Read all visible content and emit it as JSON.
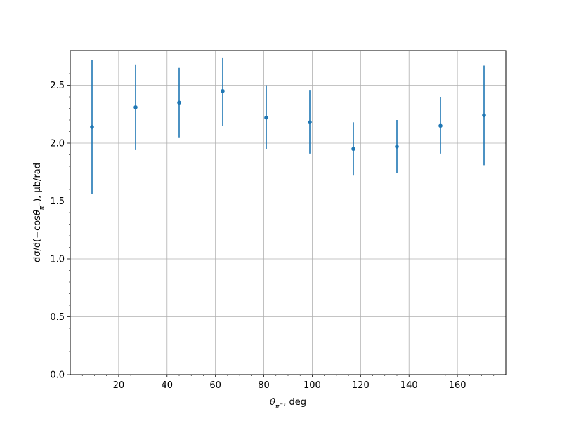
{
  "chart_data": {
    "type": "scatter",
    "title": "",
    "xlabel": {
      "symbol": "θ",
      "subscript": "π",
      "sub_sup": "−",
      "unit": ", deg"
    },
    "ylabel": {
      "prefix": "dσ/d(−cos",
      "symbol": "θ",
      "subscript": "π",
      "sub_sup": "−",
      "suffix": "), μb/rad"
    },
    "xlim": [
      0,
      180
    ],
    "ylim": [
      0.0,
      2.8
    ],
    "x_ticks": [
      20,
      40,
      60,
      80,
      100,
      120,
      140,
      160
    ],
    "x_tick_labels": [
      "20",
      "40",
      "60",
      "80",
      "100",
      "120",
      "140",
      "160"
    ],
    "x_minor_step": 5,
    "y_ticks": [
      0.0,
      0.5,
      1.0,
      1.5,
      2.0,
      2.5
    ],
    "y_tick_labels": [
      "0.0",
      "0.5",
      "1.0",
      "1.5",
      "2.0",
      "2.5"
    ],
    "y_minor_step": 0.1,
    "grid": true,
    "color": "#1f77b4",
    "series": [
      {
        "x": [
          9,
          27,
          45,
          63,
          81,
          99,
          117,
          135,
          153,
          171
        ],
        "y": [
          2.14,
          2.31,
          2.35,
          2.45,
          2.22,
          2.18,
          1.95,
          1.97,
          2.15,
          2.24
        ],
        "err_low": [
          1.56,
          1.94,
          2.05,
          2.15,
          1.95,
          1.91,
          1.72,
          1.74,
          1.91,
          1.81
        ],
        "err_high": [
          2.72,
          2.68,
          2.65,
          2.74,
          2.5,
          2.46,
          2.18,
          2.2,
          2.4,
          2.67
        ]
      }
    ]
  }
}
